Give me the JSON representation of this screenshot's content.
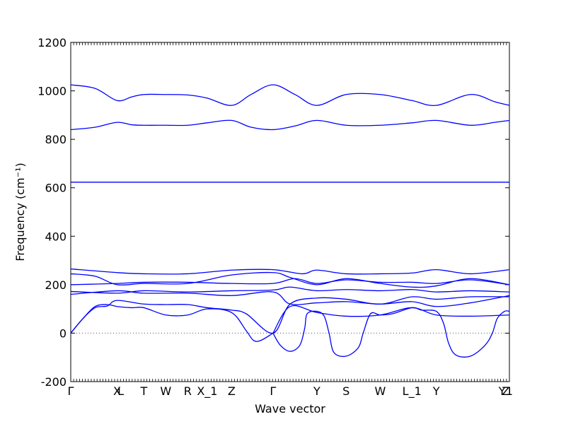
{
  "chart_data": {
    "type": "line",
    "title": "",
    "xlabel": "Wave vector",
    "ylabel": "Frequency (cm⁻¹)",
    "ylim": [
      -200,
      1200
    ],
    "yticks": [
      -200,
      0,
      200,
      400,
      600,
      800,
      1000,
      1200
    ],
    "xlim": [
      0,
      18
    ],
    "xticks": [
      {
        "label": "Γ",
        "x": 0
      },
      {
        "label": "X",
        "x": 1.9
      },
      {
        "label": "L",
        "x": 2.05
      },
      {
        "label": "T",
        "x": 3.0
      },
      {
        "label": "W",
        "x": 3.9
      },
      {
        "label": "R",
        "x": 4.8
      },
      {
        "label": "X_1",
        "x": 5.6
      },
      {
        "label": "Z",
        "x": 6.6
      },
      {
        "label": "Γ",
        "x": 8.3
      },
      {
        "label": "Y",
        "x": 10.1
      },
      {
        "label": "S",
        "x": 11.3
      },
      {
        "label": "W",
        "x": 12.7
      },
      {
        "label": "L_1",
        "x": 14.0
      },
      {
        "label": "Y",
        "x": 15.0
      },
      {
        "label": "Y",
        "x": 17.7
      },
      {
        "label": "Z",
        "x": 17.85
      },
      {
        "label": "1",
        "x": 18.0
      }
    ],
    "zero_line": 0,
    "line_color": "#0000ff",
    "series": [
      {
        "x": [
          0,
          1.0,
          1.9,
          2.5,
          3.0,
          3.9,
          4.8,
          5.6,
          6.6,
          7.4,
          8.3,
          9.2,
          10.1,
          11.3,
          12.7,
          14.0,
          15.0,
          16.4,
          17.4,
          18.0
        ],
        "values": [
          1025,
          1010,
          960,
          975,
          985,
          985,
          983,
          970,
          940,
          985,
          1025,
          985,
          940,
          985,
          985,
          960,
          940,
          985,
          955,
          940
        ]
      },
      {
        "x": [
          0,
          1.0,
          1.9,
          2.5,
          3.0,
          3.9,
          4.8,
          5.6,
          6.6,
          7.4,
          8.3,
          9.2,
          10.1,
          11.3,
          12.7,
          14.0,
          15.0,
          16.4,
          17.4,
          18.0
        ],
        "values": [
          840,
          850,
          870,
          860,
          858,
          858,
          858,
          868,
          878,
          850,
          840,
          855,
          878,
          858,
          858,
          868,
          878,
          858,
          870,
          878
        ]
      },
      {
        "x": [
          0,
          3,
          6,
          8.3,
          12,
          15,
          18
        ],
        "values": [
          623,
          623,
          623,
          623,
          623,
          623,
          623
        ]
      },
      {
        "x": [
          0,
          1.9,
          3.0,
          4.8,
          6.6,
          8.3,
          9.5,
          10.1,
          11.3,
          12.7,
          14.0,
          15.0,
          16.4,
          18.0
        ],
        "values": [
          265,
          250,
          245,
          245,
          260,
          262,
          245,
          260,
          245,
          245,
          248,
          262,
          245,
          262
        ]
      },
      {
        "x": [
          0,
          1.0,
          1.9,
          3.0,
          4.8,
          6.6,
          8.3,
          9.0,
          10.1,
          11.3,
          12.7,
          14.0,
          15.0,
          16.4,
          18.0
        ],
        "values": [
          245,
          235,
          200,
          205,
          205,
          240,
          250,
          230,
          200,
          225,
          205,
          190,
          195,
          225,
          200
        ]
      },
      {
        "x": [
          0,
          1.9,
          3.0,
          4.8,
          6.6,
          8.3,
          9.2,
          10.1,
          11.3,
          12.7,
          14.0,
          15.0,
          16.4,
          18.0
        ],
        "values": [
          200,
          205,
          210,
          210,
          205,
          205,
          225,
          205,
          220,
          210,
          210,
          205,
          220,
          200
        ]
      },
      {
        "x": [
          0,
          1.9,
          3.0,
          4.8,
          6.6,
          8.3,
          9.0,
          10.1,
          11.3,
          12.7,
          14.0,
          15.0,
          16.4,
          18.0
        ],
        "values": [
          172,
          165,
          175,
          170,
          175,
          178,
          190,
          175,
          180,
          175,
          180,
          170,
          175,
          170
        ]
      },
      {
        "x": [
          0,
          1.9,
          3.0,
          4.8,
          6.6,
          8.3,
          9.0,
          10.1,
          11.3,
          12.7,
          14.0,
          15.0,
          16.4,
          18.0
        ],
        "values": [
          160,
          175,
          165,
          165,
          155,
          170,
          120,
          125,
          130,
          120,
          130,
          110,
          125,
          155
        ]
      },
      {
        "x": [
          0,
          0.5,
          1.0,
          1.5,
          1.9,
          3.0,
          3.9,
          4.8,
          5.6,
          6.6,
          7.2,
          8.3,
          9.0,
          10.1,
          11.3,
          12.7,
          14.0,
          15.0,
          16.4,
          18.0
        ],
        "values": [
          0,
          60,
          105,
          112,
          135,
          120,
          118,
          118,
          105,
          95,
          80,
          0,
          120,
          145,
          140,
          120,
          150,
          140,
          150,
          150
        ]
      },
      {
        "x": [
          0,
          0.5,
          1.0,
          1.5,
          1.9,
          2.5,
          3.0,
          3.9,
          4.8,
          5.6,
          6.6,
          7.2,
          7.5,
          7.8,
          8.3
        ],
        "values": [
          0,
          60,
          110,
          118,
          110,
          105,
          105,
          75,
          75,
          100,
          85,
          10,
          -30,
          -30,
          0
        ]
      },
      {
        "x": [
          8.3,
          8.6,
          9.0,
          9.4,
          9.6,
          9.7,
          10.1,
          10.4,
          10.6,
          10.8,
          11.3,
          11.8,
          12.0,
          12.3,
          12.7,
          13.2,
          14.0,
          14.4,
          15.0,
          15.3,
          15.5,
          15.8,
          16.4,
          17.0,
          17.3,
          17.5,
          17.8,
          18.0
        ],
        "values": [
          0,
          -50,
          -75,
          -50,
          20,
          80,
          90,
          70,
          0,
          -80,
          -95,
          -60,
          0,
          80,
          75,
          80,
          105,
          95,
          90,
          40,
          -40,
          -90,
          -95,
          -50,
          0,
          60,
          90,
          90
        ]
      },
      {
        "x": [
          8.3,
          9.0,
          10.1,
          11.3,
          12.7,
          14.0,
          15.0,
          16.4,
          18.0
        ],
        "values": [
          0,
          110,
          85,
          70,
          75,
          105,
          75,
          70,
          75
        ]
      }
    ]
  }
}
